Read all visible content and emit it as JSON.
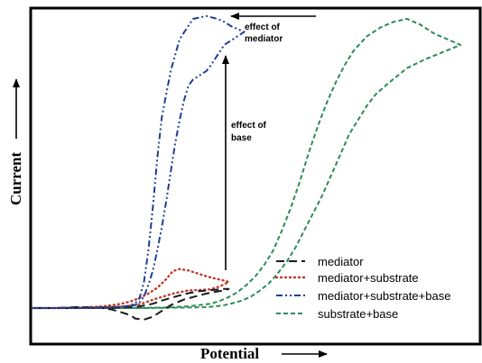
{
  "chart_data": {
    "type": "line",
    "title": "",
    "xlabel": "Potential",
    "ylabel": "Current",
    "xlim": [
      0,
      100
    ],
    "ylim": [
      0,
      100
    ],
    "grid": false,
    "legend_position": "bottom-right",
    "annotations": [
      {
        "id": "effect-of-mediator",
        "lines": [
          "effect of",
          "mediator"
        ]
      },
      {
        "id": "effect-of-base",
        "lines": [
          "effect of",
          "base"
        ]
      }
    ],
    "series": [
      {
        "name": "mediator",
        "color": "#1a1a1a",
        "dash": "long-dash",
        "x": [
          0,
          5,
          10,
          15,
          18,
          20,
          22,
          23,
          25,
          27,
          29,
          31,
          34,
          37,
          39,
          41,
          43,
          44,
          43,
          40,
          37,
          34,
          31,
          29,
          27,
          24,
          22,
          20,
          17,
          13,
          8,
          3,
          0
        ],
        "y": [
          0,
          0,
          0.3,
          0.2,
          -0.6,
          -1.5,
          -2.5,
          -3.6,
          -4,
          -3,
          -1,
          1,
          3,
          4.2,
          5,
          5.6,
          6.1,
          6.6,
          6.6,
          6.2,
          5.8,
          4.8,
          3.5,
          2.6,
          1.5,
          0.6,
          0.3,
          0.2,
          0.1,
          0,
          0,
          0,
          0
        ]
      },
      {
        "name": "mediator+substrate",
        "color": "#c0392b",
        "dash": "dotted",
        "x": [
          0,
          5,
          10,
          15,
          18,
          20,
          22,
          24,
          26,
          28,
          30,
          31.5,
          33,
          35,
          37,
          39,
          41,
          43,
          44,
          42,
          40,
          38,
          35,
          32,
          30,
          28,
          26,
          24,
          22,
          20,
          17,
          13,
          8,
          3,
          0
        ],
        "y": [
          0,
          0,
          0.2,
          0.5,
          1,
          1.5,
          2.3,
          3.5,
          5,
          7,
          10,
          12.8,
          13.5,
          13,
          12,
          11,
          10.2,
          9.5,
          9,
          7.5,
          6.5,
          6.3,
          6.1,
          5.2,
          4.3,
          3.4,
          2.3,
          1.3,
          0.8,
          0.5,
          0.3,
          0.1,
          0,
          0,
          0
        ]
      },
      {
        "name": "mediator+substrate+base",
        "color": "#1f3f93",
        "dash": "dash-dot-dot",
        "x": [
          0,
          10,
          17,
          21,
          23,
          24,
          25,
          26,
          27,
          28,
          29,
          31,
          33,
          36,
          39,
          41.5,
          43,
          44.5,
          46,
          47.5,
          43,
          40,
          39,
          38,
          37,
          36,
          35,
          34,
          33,
          32,
          31,
          30,
          29,
          28,
          27,
          26,
          25,
          24,
          23,
          22,
          21,
          19,
          17,
          13,
          8,
          3,
          0
        ],
        "y": [
          0,
          0,
          0.2,
          0.6,
          1.6,
          3.5,
          9,
          20,
          35,
          52,
          66,
          82,
          93,
          100,
          101,
          100,
          99,
          97.5,
          96.5,
          95.5,
          91,
          84,
          82,
          81,
          80,
          79,
          77,
          72,
          65,
          57,
          47,
          37,
          28,
          20,
          13,
          8,
          4,
          2,
          1,
          0.8,
          0.6,
          0.4,
          0.2,
          0,
          0,
          0,
          0
        ]
      },
      {
        "name": "substrate+base",
        "color": "#2e8b57",
        "dash": "short-dash",
        "x": [
          0,
          5,
          10,
          15,
          20,
          25,
          30,
          35,
          40,
          42,
          44,
          46,
          48,
          50,
          52,
          54,
          56,
          58,
          60,
          62,
          64,
          66,
          68,
          70,
          72,
          75,
          78,
          81,
          84,
          87,
          90,
          93,
          96,
          88,
          84,
          80,
          77,
          75,
          73,
          71,
          69,
          67,
          65,
          63,
          61,
          59,
          57,
          55,
          53,
          51,
          49,
          47,
          45,
          43,
          41,
          39,
          35,
          30,
          25,
          20,
          15,
          10,
          5,
          0
        ],
        "y": [
          0,
          0,
          0,
          0,
          0,
          0.1,
          0.2,
          0.6,
          1.5,
          2.5,
          3.8,
          5.5,
          8,
          11,
          15,
          20,
          27,
          35,
          44,
          54,
          63,
          71,
          78,
          84,
          89,
          94,
          97,
          99,
          100,
          98,
          95,
          93,
          91,
          86,
          83,
          78,
          74,
          70,
          65,
          60,
          53,
          46,
          39,
          33,
          27,
          21,
          16,
          12,
          8.5,
          6,
          4,
          2.6,
          1.7,
          1,
          0.6,
          0.3,
          0.2,
          0.1,
          0,
          0,
          0,
          0,
          0,
          0
        ]
      }
    ]
  }
}
